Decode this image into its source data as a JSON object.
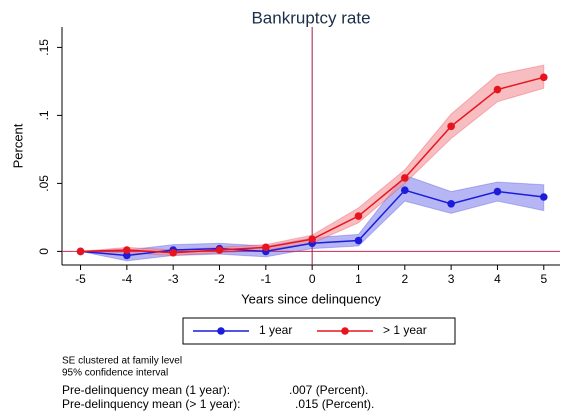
{
  "chart_data": {
    "type": "line",
    "title": "Bankruptcy rate",
    "x_label": "Years since delinquency",
    "y_label": "Percent",
    "x": [
      -5,
      -4,
      -3,
      -2,
      -1,
      0,
      1,
      2,
      3,
      4,
      5
    ],
    "xlim": [
      -5.4,
      5.35
    ],
    "xticks": [
      -5,
      -4,
      -3,
      -2,
      -1,
      0,
      1,
      2,
      3,
      4,
      5
    ],
    "ylim": [
      -0.01,
      0.165
    ],
    "yticks": [
      0,
      {
        "value": 0.05,
        "label": ".05"
      },
      {
        "value": 0.1,
        "label": ".1"
      },
      {
        "value": 0.15,
        "label": ".15"
      }
    ],
    "vline": 0,
    "hline": 0,
    "series": [
      {
        "name": "1 year",
        "color": "#1c1cdc",
        "band_color": "#8f8fee",
        "values": [
          0,
          -0.003,
          0.001,
          0.002,
          0.0,
          0.006,
          0.008,
          0.045,
          0.035,
          0.044,
          0.04
        ],
        "ci_lower": [
          0,
          -0.007,
          -0.003,
          -0.002,
          -0.004,
          0.002,
          0.004,
          0.037,
          0.028,
          0.037,
          0.03
        ],
        "ci_upper": [
          0,
          0.001,
          0.005,
          0.006,
          0.004,
          0.01,
          0.0125,
          0.056,
          0.044,
          0.051,
          0.049
        ]
      },
      {
        "name": "> 1 year",
        "color": "#e8141d",
        "band_color": "#f49a9e",
        "values": [
          0,
          0.001,
          -0.001,
          0.001,
          0.003,
          0.009,
          0.026,
          0.054,
          0.092,
          0.119,
          0.128
        ],
        "ci_lower": [
          0,
          -0.001,
          -0.003,
          -0.001,
          0.001,
          0.006,
          0.021,
          0.05,
          0.083,
          0.11,
          0.12
        ],
        "ci_upper": [
          0,
          0.003,
          0.001,
          0.003,
          0.005,
          0.012,
          0.032,
          0.06,
          0.101,
          0.13,
          0.137
        ]
      }
    ],
    "notes": [
      "SE clustered at family level",
      "95% confidence interval"
    ],
    "stats": [
      {
        "label": "Pre-delinquency mean (1 year):",
        "value": ".007 (Percent)."
      },
      {
        "label": "Pre-delinquency mean (> 1 year):",
        "value": ".015 (Percent)."
      }
    ]
  }
}
